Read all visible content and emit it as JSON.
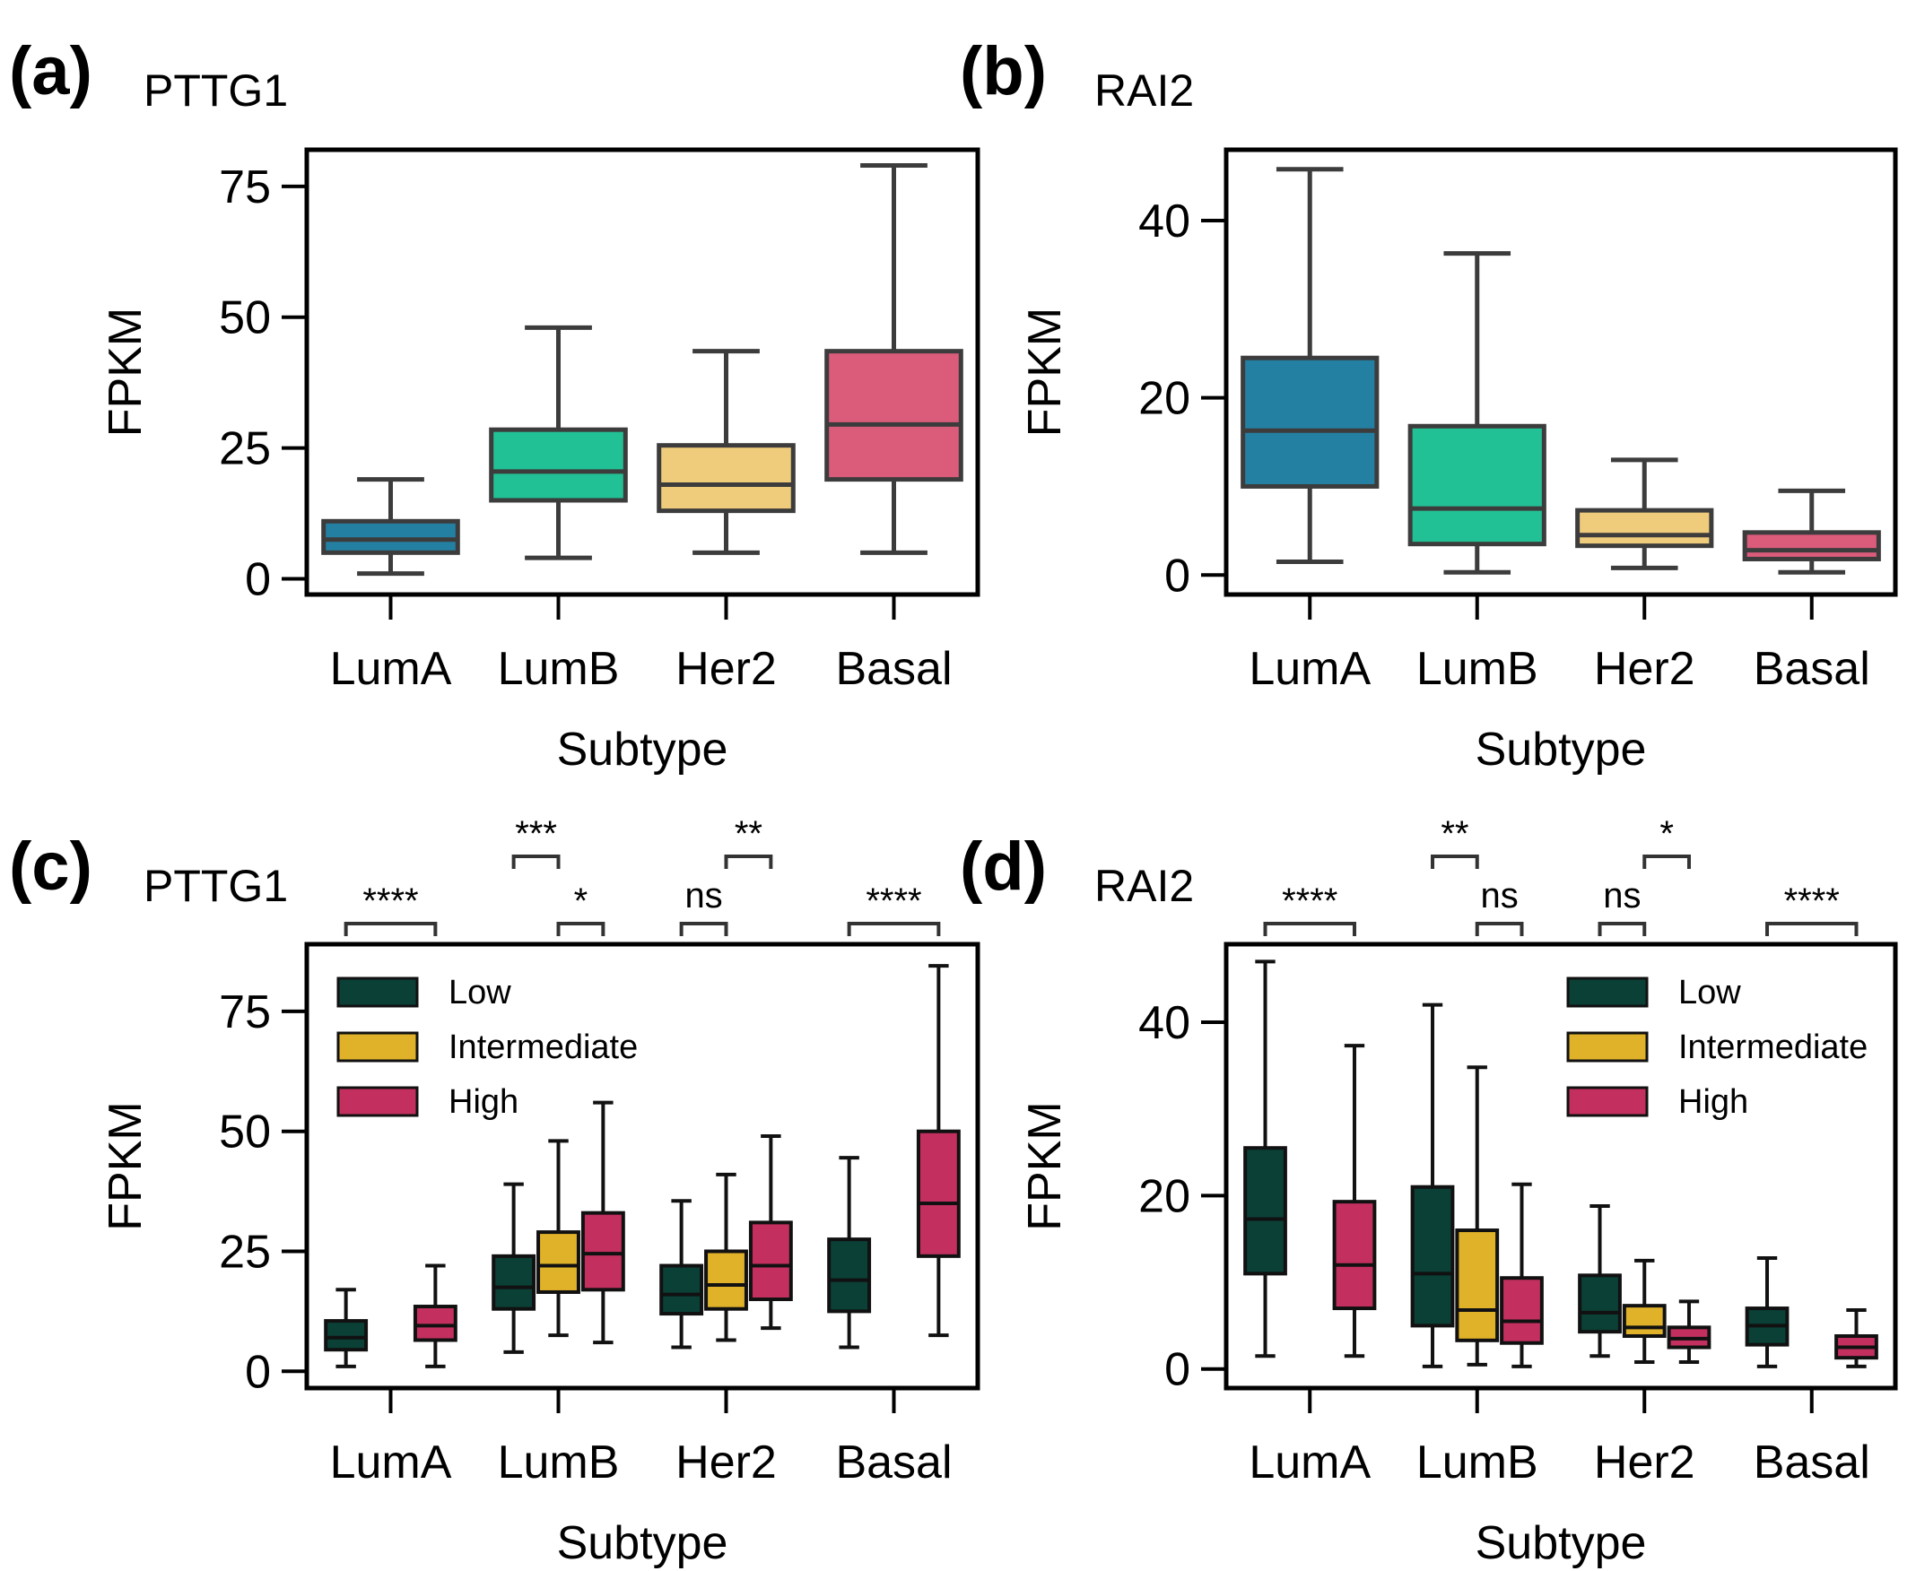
{
  "chart_data": [
    {
      "type": "box",
      "panel": "(a)",
      "title": "PTTG1",
      "xlabel": "Subtype",
      "ylabel": "FPKM",
      "categories": [
        "LumA",
        "LumB",
        "Her2",
        "Basal"
      ],
      "ylim": [
        -3,
        82
      ],
      "yticks": [
        0,
        25,
        50,
        75
      ],
      "colors": [
        "#2480a3",
        "#22c195",
        "#efcb7c",
        "#db5b7b"
      ],
      "boxes": [
        {
          "category": "LumA",
          "whislo": 1,
          "q1": 5,
          "med": 7.5,
          "q3": 11,
          "whishi": 19
        },
        {
          "category": "LumB",
          "whislo": 4,
          "q1": 15,
          "med": 20.5,
          "q3": 28.5,
          "whishi": 48
        },
        {
          "category": "Her2",
          "whislo": 5,
          "q1": 13,
          "med": 18,
          "q3": 25.5,
          "whishi": 43.5
        },
        {
          "category": "Basal",
          "whislo": 5,
          "q1": 19,
          "med": 29.5,
          "q3": 43.5,
          "whishi": 79
        }
      ]
    },
    {
      "type": "box",
      "panel": "(b)",
      "title": "RAI2",
      "xlabel": "Subtype",
      "ylabel": "FPKM",
      "categories": [
        "LumA",
        "LumB",
        "Her2",
        "Basal"
      ],
      "ylim": [
        -2.2,
        48
      ],
      "yticks": [
        0,
        20,
        40
      ],
      "colors": [
        "#2480a3",
        "#22c195",
        "#efcb7c",
        "#db5b7b"
      ],
      "boxes": [
        {
          "category": "LumA",
          "whislo": 1.5,
          "q1": 10,
          "med": 16.3,
          "q3": 24.5,
          "whishi": 45.8
        },
        {
          "category": "LumB",
          "whislo": 0.3,
          "q1": 3.5,
          "med": 7.5,
          "q3": 16.8,
          "whishi": 36.3
        },
        {
          "category": "Her2",
          "whislo": 0.8,
          "q1": 3.3,
          "med": 4.5,
          "q3": 7.3,
          "whishi": 13
        },
        {
          "category": "Basal",
          "whislo": 0.3,
          "q1": 1.8,
          "med": 2.8,
          "q3": 4.8,
          "whishi": 9.5
        }
      ]
    },
    {
      "type": "grouped_box",
      "panel": "(c)",
      "title": "PTTG1",
      "xlabel": "Subtype",
      "ylabel": "FPKM",
      "categories": [
        "LumA",
        "LumB",
        "Her2",
        "Basal"
      ],
      "ylim": [
        -3.5,
        89
      ],
      "yticks": [
        0,
        25,
        50,
        75
      ],
      "legend": {
        "position": "upper-left",
        "entries": [
          "Low",
          "Intermediate",
          "High"
        ]
      },
      "series_colors": {
        "Low": "#0a4036",
        "Intermediate": "#e0b22a",
        "High": "#c3305f"
      },
      "boxes": [
        {
          "category": "LumA",
          "group": "Low",
          "whislo": 1,
          "q1": 4.5,
          "med": 7,
          "q3": 10.5,
          "whishi": 17
        },
        {
          "category": "LumA",
          "group": "High",
          "whislo": 1,
          "q1": 6.5,
          "med": 9.5,
          "q3": 13.5,
          "whishi": 22
        },
        {
          "category": "LumB",
          "group": "Low",
          "whislo": 4,
          "q1": 13,
          "med": 17.5,
          "q3": 24,
          "whishi": 39
        },
        {
          "category": "LumB",
          "group": "Intermediate",
          "whislo": 7.5,
          "q1": 16.5,
          "med": 22,
          "q3": 29,
          "whishi": 48
        },
        {
          "category": "LumB",
          "group": "High",
          "whislo": 6,
          "q1": 17,
          "med": 24.5,
          "q3": 33,
          "whishi": 56
        },
        {
          "category": "Her2",
          "group": "Low",
          "whislo": 5,
          "q1": 12,
          "med": 16,
          "q3": 22,
          "whishi": 35.5
        },
        {
          "category": "Her2",
          "group": "Intermediate",
          "whislo": 6.5,
          "q1": 13,
          "med": 18,
          "q3": 25,
          "whishi": 41
        },
        {
          "category": "Her2",
          "group": "High",
          "whislo": 9,
          "q1": 15,
          "med": 22,
          "q3": 31,
          "whishi": 49
        },
        {
          "category": "Basal",
          "group": "Low",
          "whislo": 5,
          "q1": 12.5,
          "med": 19,
          "q3": 27.5,
          "whishi": 44.5
        },
        {
          "category": "Basal",
          "group": "High",
          "whislo": 7.5,
          "q1": 24,
          "med": 35,
          "q3": 50,
          "whishi": 84.5
        }
      ],
      "significance": [
        {
          "label": "****",
          "from": "LumA/Low",
          "to": "LumA/High",
          "level": "low"
        },
        {
          "label": "***",
          "from": "LumB/Low",
          "to": "LumB/Intermediate",
          "level": "high"
        },
        {
          "label": "*",
          "from": "LumB/Intermediate",
          "to": "LumB/High",
          "level": "low"
        },
        {
          "label": "ns",
          "from": "Her2/Low",
          "to": "Her2/Intermediate",
          "level": "low"
        },
        {
          "label": "**",
          "from": "Her2/Intermediate",
          "to": "Her2/High",
          "level": "high"
        },
        {
          "label": "****",
          "from": "Basal/Low",
          "to": "Basal/High",
          "level": "low"
        }
      ]
    },
    {
      "type": "grouped_box",
      "panel": "(d)",
      "title": "RAI2",
      "xlabel": "Subtype",
      "ylabel": "FPKM",
      "categories": [
        "LumA",
        "LumB",
        "Her2",
        "Basal"
      ],
      "ylim": [
        -2.2,
        49
      ],
      "yticks": [
        0,
        20,
        40
      ],
      "legend": {
        "position": "upper-right",
        "entries": [
          "Low",
          "Intermediate",
          "High"
        ]
      },
      "series_colors": {
        "Low": "#0a4036",
        "Intermediate": "#e0b22a",
        "High": "#c3305f"
      },
      "boxes": [
        {
          "category": "LumA",
          "group": "Low",
          "whislo": 1.5,
          "q1": 11,
          "med": 17.3,
          "q3": 25.5,
          "whishi": 47
        },
        {
          "category": "LumA",
          "group": "High",
          "whislo": 1.5,
          "q1": 7,
          "med": 12,
          "q3": 19.3,
          "whishi": 37.3
        },
        {
          "category": "LumB",
          "group": "Low",
          "whislo": 0.3,
          "q1": 5,
          "med": 11,
          "q3": 21,
          "whishi": 42
        },
        {
          "category": "LumB",
          "group": "Intermediate",
          "whislo": 0.5,
          "q1": 3.3,
          "med": 6.8,
          "q3": 16,
          "whishi": 34.8
        },
        {
          "category": "LumB",
          "group": "High",
          "whislo": 0.3,
          "q1": 3,
          "med": 5.5,
          "q3": 10.5,
          "whishi": 21.3
        },
        {
          "category": "Her2",
          "group": "Low",
          "whislo": 1.5,
          "q1": 4.3,
          "med": 6.5,
          "q3": 10.8,
          "whishi": 18.8
        },
        {
          "category": "Her2",
          "group": "Intermediate",
          "whislo": 0.8,
          "q1": 3.8,
          "med": 4.8,
          "q3": 7.3,
          "whishi": 12.5
        },
        {
          "category": "Her2",
          "group": "High",
          "whislo": 0.8,
          "q1": 2.5,
          "med": 3.5,
          "q3": 4.8,
          "whishi": 7.8
        },
        {
          "category": "Basal",
          "group": "Low",
          "whislo": 0.3,
          "q1": 2.8,
          "med": 5,
          "q3": 7,
          "whishi": 12.8
        },
        {
          "category": "Basal",
          "group": "High",
          "whislo": 0.3,
          "q1": 1.3,
          "med": 2.5,
          "q3": 3.8,
          "whishi": 6.8
        }
      ],
      "significance": [
        {
          "label": "****",
          "from": "LumA/Low",
          "to": "LumA/High",
          "level": "low"
        },
        {
          "label": "**",
          "from": "LumB/Low",
          "to": "LumB/Intermediate",
          "level": "high"
        },
        {
          "label": "ns",
          "from": "LumB/Intermediate",
          "to": "LumB/High",
          "level": "low"
        },
        {
          "label": "ns",
          "from": "Her2/Low",
          "to": "Her2/Intermediate",
          "level": "low"
        },
        {
          "label": "*",
          "from": "Her2/Intermediate",
          "to": "Her2/High",
          "level": "high"
        },
        {
          "label": "****",
          "from": "Basal/Low",
          "to": "Basal/High",
          "level": "low"
        }
      ]
    }
  ]
}
